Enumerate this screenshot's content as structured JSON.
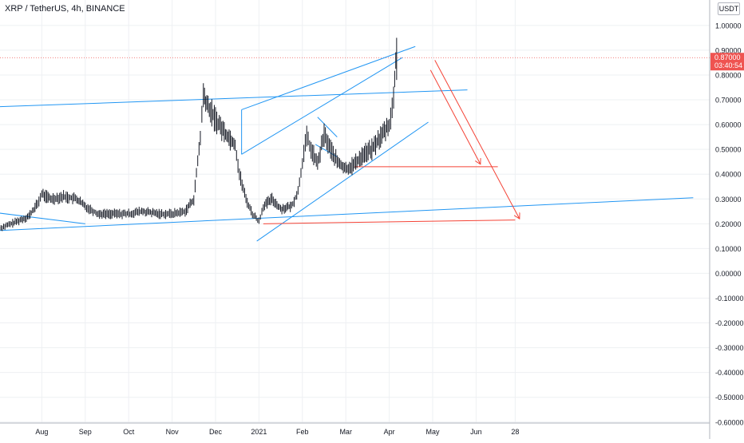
{
  "header": {
    "symbol_title": "XRP / TetherUS, 4h, BINANCE",
    "currency_button": "USDT"
  },
  "price_label": {
    "value": "0.87000",
    "countdown": "03:40:54"
  },
  "colors": {
    "candle": "#131722",
    "trendline_blue": "#2196f3",
    "projection_red": "#f44336",
    "price_label_bg": "#ef5350",
    "axis_text": "#131722",
    "grid": "#eef0f3"
  },
  "chart_data": {
    "type": "candlestick",
    "title": "XRP / TetherUS, 4h, BINANCE",
    "ylim": [
      -0.62,
      1.08
    ],
    "y_ticks": [
      {
        "value": 1.0,
        "label": "1.00000"
      },
      {
        "value": 0.9,
        "label": "0.90000"
      },
      {
        "value": 0.8,
        "label": "0.80000"
      },
      {
        "value": 0.7,
        "label": "0.70000"
      },
      {
        "value": 0.6,
        "label": "0.60000"
      },
      {
        "value": 0.5,
        "label": "0.50000"
      },
      {
        "value": 0.4,
        "label": "0.40000"
      },
      {
        "value": 0.3,
        "label": "0.30000"
      },
      {
        "value": 0.2,
        "label": "0.20000"
      },
      {
        "value": 0.1,
        "label": "0.10000"
      },
      {
        "value": 0.0,
        "label": "0.00000"
      },
      {
        "value": -0.1,
        "label": "-0.10000"
      },
      {
        "value": -0.2,
        "label": "-0.20000"
      },
      {
        "value": -0.3,
        "label": "-0.30000"
      },
      {
        "value": -0.4,
        "label": "-0.40000"
      },
      {
        "value": -0.5,
        "label": "-0.50000"
      },
      {
        "value": -0.6,
        "label": "-0.60000"
      }
    ],
    "x_ticks": [
      {
        "t": 1.0,
        "label": "Aug"
      },
      {
        "t": 2.0,
        "label": "Sep"
      },
      {
        "t": 3.0,
        "label": "Oct"
      },
      {
        "t": 4.0,
        "label": "Nov"
      },
      {
        "t": 5.0,
        "label": "Dec"
      },
      {
        "t": 6.0,
        "label": "2021"
      },
      {
        "t": 7.0,
        "label": "Feb"
      },
      {
        "t": 8.0,
        "label": "Mar"
      },
      {
        "t": 9.0,
        "label": "Apr"
      },
      {
        "t": 10.0,
        "label": "May"
      },
      {
        "t": 11.0,
        "label": "Jun"
      },
      {
        "t": 11.9,
        "label": "28"
      }
    ],
    "price_path": [
      [
        0.0,
        0.18
      ],
      [
        0.3,
        0.2
      ],
      [
        0.7,
        0.23
      ],
      [
        0.9,
        0.28
      ],
      [
        1.0,
        0.32
      ],
      [
        1.2,
        0.3
      ],
      [
        1.5,
        0.31
      ],
      [
        1.8,
        0.3
      ],
      [
        2.0,
        0.27
      ],
      [
        2.3,
        0.24
      ],
      [
        2.7,
        0.24
      ],
      [
        3.0,
        0.24
      ],
      [
        3.3,
        0.25
      ],
      [
        3.7,
        0.24
      ],
      [
        4.0,
        0.24
      ],
      [
        4.3,
        0.25
      ],
      [
        4.5,
        0.3
      ],
      [
        4.65,
        0.55
      ],
      [
        4.72,
        0.72
      ],
      [
        4.8,
        0.68
      ],
      [
        5.0,
        0.62
      ],
      [
        5.2,
        0.57
      ],
      [
        5.45,
        0.52
      ],
      [
        5.55,
        0.4
      ],
      [
        5.7,
        0.3
      ],
      [
        5.85,
        0.24
      ],
      [
        6.0,
        0.21
      ],
      [
        6.1,
        0.27
      ],
      [
        6.3,
        0.3
      ],
      [
        6.5,
        0.26
      ],
      [
        6.75,
        0.27
      ],
      [
        6.9,
        0.33
      ],
      [
        7.0,
        0.45
      ],
      [
        7.1,
        0.55
      ],
      [
        7.2,
        0.5
      ],
      [
        7.35,
        0.44
      ],
      [
        7.5,
        0.56
      ],
      [
        7.65,
        0.5
      ],
      [
        7.8,
        0.45
      ],
      [
        8.0,
        0.42
      ],
      [
        8.2,
        0.44
      ],
      [
        8.4,
        0.48
      ],
      [
        8.6,
        0.5
      ],
      [
        8.8,
        0.55
      ],
      [
        9.0,
        0.6
      ],
      [
        9.1,
        0.7
      ],
      [
        9.15,
        0.86
      ],
      [
        9.17,
        0.87
      ]
    ],
    "trendlines": [
      {
        "color": "blue",
        "from": [
          -0.3,
          0.67
        ],
        "to": [
          10.8,
          0.74
        ]
      },
      {
        "color": "blue",
        "from": [
          -0.3,
          0.17
        ],
        "to": [
          16.0,
          0.305
        ]
      },
      {
        "color": "blue",
        "from": [
          -0.3,
          0.25
        ],
        "to": [
          2.0,
          0.2
        ]
      },
      {
        "color": "blue",
        "from": [
          5.6,
          0.66
        ],
        "to": [
          9.6,
          0.915
        ]
      },
      {
        "color": "blue",
        "from": [
          5.6,
          0.66
        ],
        "to": [
          5.6,
          0.48
        ]
      },
      {
        "color": "blue",
        "from": [
          5.6,
          0.48
        ],
        "to": [
          9.3,
          0.87
        ]
      },
      {
        "color": "blue",
        "from": [
          5.95,
          0.13
        ],
        "to": [
          9.9,
          0.61
        ]
      },
      {
        "color": "blue",
        "from": [
          7.3,
          0.52
        ],
        "to": [
          7.8,
          0.47
        ]
      },
      {
        "color": "blue",
        "from": [
          7.35,
          0.63
        ],
        "to": [
          7.8,
          0.55
        ]
      }
    ],
    "projections": [
      {
        "color": "red",
        "from": [
          8.2,
          0.43
        ],
        "to": [
          11.5,
          0.43
        ]
      },
      {
        "color": "red",
        "from": [
          6.1,
          0.2
        ],
        "to": [
          11.9,
          0.215
        ]
      },
      {
        "color": "red",
        "from": [
          9.95,
          0.82
        ],
        "to": [
          11.1,
          0.44
        ],
        "arrow": true
      },
      {
        "color": "red",
        "from": [
          10.05,
          0.86
        ],
        "to": [
          12.0,
          0.22
        ],
        "arrow": true
      }
    ],
    "last_price": 0.87
  }
}
